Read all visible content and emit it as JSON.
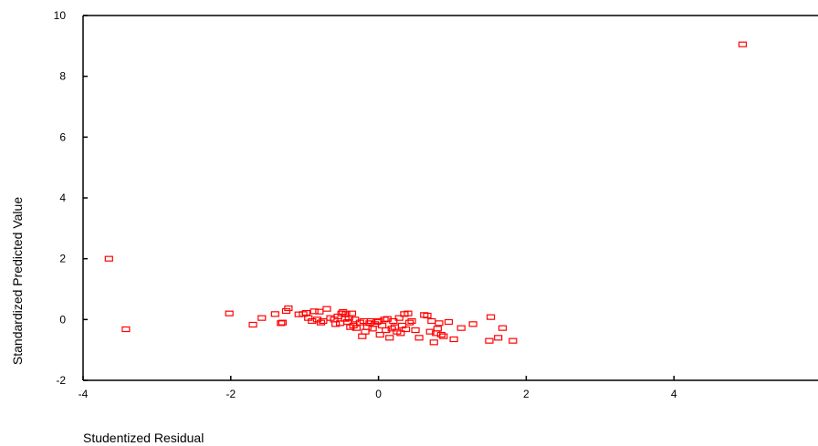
{
  "chart_data": {
    "type": "scatter",
    "title": "",
    "xlabel": "Studentized Residual",
    "ylabel": "Standardized Predicted Value",
    "xlim": [
      -4,
      6
    ],
    "ylim": [
      -2,
      10
    ],
    "xticks": [
      "-4",
      "-2",
      "0",
      "2",
      "4",
      "6"
    ],
    "yticks": [
      "-2",
      "0",
      "2",
      "4",
      "6",
      "8",
      "10"
    ],
    "grid": false,
    "legend": "none",
    "marker": "open-square",
    "marker_color": "#ff0000",
    "points": [
      [
        -3.65,
        2.0
      ],
      [
        -3.42,
        -0.32
      ],
      [
        4.93,
        9.05
      ],
      [
        -2.02,
        0.2
      ],
      [
        -1.7,
        -0.17
      ],
      [
        -1.58,
        0.05
      ],
      [
        -1.4,
        0.18
      ],
      [
        -1.32,
        -0.12
      ],
      [
        -1.3,
        -0.1
      ],
      [
        -1.25,
        0.28
      ],
      [
        -1.22,
        0.37
      ],
      [
        -1.08,
        0.17
      ],
      [
        -1.02,
        0.18
      ],
      [
        -0.98,
        0.22
      ],
      [
        -0.95,
        0.05
      ],
      [
        -0.9,
        -0.05
      ],
      [
        -0.87,
        0.27
      ],
      [
        -0.83,
        0.0
      ],
      [
        -0.8,
        0.26
      ],
      [
        -0.78,
        -0.1
      ],
      [
        -0.75,
        -0.05
      ],
      [
        -0.7,
        0.35
      ],
      [
        -0.65,
        0.05
      ],
      [
        -0.6,
        0.0
      ],
      [
        -0.58,
        -0.15
      ],
      [
        -0.55,
        0.1
      ],
      [
        -0.52,
        -0.12
      ],
      [
        -0.5,
        0.2
      ],
      [
        -0.48,
        0.25
      ],
      [
        -0.45,
        0.02
      ],
      [
        -0.44,
        0.18
      ],
      [
        -0.42,
        -0.08
      ],
      [
        -0.4,
        0.05
      ],
      [
        -0.38,
        -0.25
      ],
      [
        -0.36,
        0.2
      ],
      [
        -0.34,
        -0.2
      ],
      [
        -0.32,
        0.0
      ],
      [
        -0.3,
        -0.28
      ],
      [
        -0.25,
        -0.1
      ],
      [
        -0.22,
        -0.55
      ],
      [
        -0.2,
        -0.05
      ],
      [
        -0.18,
        -0.4
      ],
      [
        -0.15,
        -0.25
      ],
      [
        -0.12,
        -0.12
      ],
      [
        -0.1,
        -0.05
      ],
      [
        -0.08,
        -0.3
      ],
      [
        -0.05,
        -0.15
      ],
      [
        -0.02,
        -0.08
      ],
      [
        0.0,
        -0.05
      ],
      [
        0.02,
        -0.5
      ],
      [
        0.05,
        -0.2
      ],
      [
        0.08,
        0.0
      ],
      [
        0.1,
        -0.35
      ],
      [
        0.12,
        0.02
      ],
      [
        0.15,
        -0.6
      ],
      [
        0.18,
        -0.3
      ],
      [
        0.2,
        -0.05
      ],
      [
        0.22,
        -0.25
      ],
      [
        0.25,
        -0.4
      ],
      [
        0.28,
        0.05
      ],
      [
        0.3,
        -0.45
      ],
      [
        0.32,
        -0.2
      ],
      [
        0.35,
        0.18
      ],
      [
        0.37,
        -0.32
      ],
      [
        0.4,
        0.2
      ],
      [
        0.42,
        -0.1
      ],
      [
        0.45,
        -0.05
      ],
      [
        0.5,
        -0.35
      ],
      [
        0.55,
        -0.6
      ],
      [
        0.62,
        0.15
      ],
      [
        0.66,
        0.13
      ],
      [
        0.7,
        -0.4
      ],
      [
        0.72,
        -0.05
      ],
      [
        0.75,
        -0.75
      ],
      [
        0.78,
        -0.45
      ],
      [
        0.8,
        -0.3
      ],
      [
        0.82,
        -0.12
      ],
      [
        0.85,
        -0.5
      ],
      [
        0.88,
        -0.55
      ],
      [
        0.95,
        -0.08
      ],
      [
        1.02,
        -0.65
      ],
      [
        1.12,
        -0.28
      ],
      [
        1.28,
        -0.15
      ],
      [
        1.5,
        -0.7
      ],
      [
        1.52,
        0.08
      ],
      [
        1.62,
        -0.6
      ],
      [
        1.68,
        -0.28
      ],
      [
        1.82,
        -0.7
      ]
    ]
  }
}
